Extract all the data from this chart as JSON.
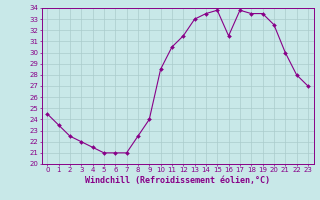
{
  "x": [
    0,
    1,
    2,
    3,
    4,
    5,
    6,
    7,
    8,
    9,
    10,
    11,
    12,
    13,
    14,
    15,
    16,
    17,
    18,
    19,
    20,
    21,
    22,
    23
  ],
  "y": [
    24.5,
    23.5,
    22.5,
    22.0,
    21.5,
    21.0,
    21.0,
    21.0,
    22.5,
    24.0,
    28.5,
    30.5,
    31.5,
    33.0,
    33.5,
    33.8,
    31.5,
    33.8,
    33.5,
    33.5,
    32.5,
    30.0,
    28.0,
    27.0
  ],
  "line_color": "#880088",
  "marker": "D",
  "marker_size": 2.0,
  "bg_color": "#c8e8e8",
  "grid_color": "#aacccc",
  "xlabel": "Windchill (Refroidissement éolien,°C)",
  "xlabel_color": "#880088",
  "ylim": [
    20,
    34
  ],
  "xlim": [
    -0.5,
    23.5
  ],
  "yticks": [
    20,
    21,
    22,
    23,
    24,
    25,
    26,
    27,
    28,
    29,
    30,
    31,
    32,
    33,
    34
  ],
  "xticks": [
    0,
    1,
    2,
    3,
    4,
    5,
    6,
    7,
    8,
    9,
    10,
    11,
    12,
    13,
    14,
    15,
    16,
    17,
    18,
    19,
    20,
    21,
    22,
    23
  ],
  "tick_color": "#880088",
  "tick_fontsize": 5.0,
  "xlabel_fontsize": 6.0,
  "linewidth": 0.8
}
